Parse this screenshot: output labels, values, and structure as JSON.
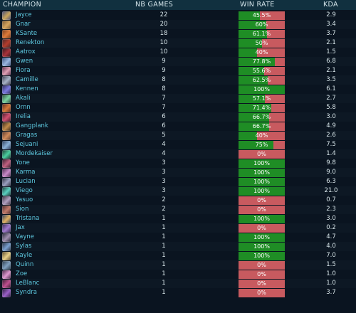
{
  "header": {
    "champion": "CHAMPION",
    "games": "NB GAMES",
    "winrate": "WIN RATE",
    "kda": "KDA"
  },
  "colors": {
    "win": "#1f8d25",
    "loss": "#c85a5f",
    "header_bg": "#11303f",
    "name": "#5ec9e0"
  },
  "rows": [
    {
      "name": "Jayce",
      "games": "22",
      "winrate": "45.5%",
      "win_pct": 45.5,
      "kda": "2.9",
      "icon": "jayce-icon",
      "c1": "#4a4f7a",
      "c2": "#c9a55a"
    },
    {
      "name": "Gnar",
      "games": "20",
      "winrate": "60%",
      "win_pct": 60,
      "kda": "3.4",
      "icon": "gnar-icon",
      "c1": "#7a5a34",
      "c2": "#d5a45e"
    },
    {
      "name": "KSante",
      "games": "18",
      "winrate": "61.1%",
      "win_pct": 61.1,
      "kda": "3.7",
      "icon": "ksante-icon",
      "c1": "#7a3d1c",
      "c2": "#e07b3a"
    },
    {
      "name": "Renekton",
      "games": "10",
      "winrate": "50%",
      "win_pct": 50,
      "kda": "2.1",
      "icon": "renekton-icon",
      "c1": "#4b2a2c",
      "c2": "#b33c2c"
    },
    {
      "name": "Aatrox",
      "games": "10",
      "winrate": "40%",
      "win_pct": 40,
      "kda": "1.5",
      "icon": "aatrox-icon",
      "c1": "#3a1a1f",
      "c2": "#a8333a"
    },
    {
      "name": "Gwen",
      "games": "9",
      "winrate": "77.8%",
      "win_pct": 77.8,
      "kda": "6.8",
      "icon": "gwen-icon",
      "c1": "#364d7a",
      "c2": "#9ab6e0"
    },
    {
      "name": "Fiora",
      "games": "9",
      "winrate": "55.6%",
      "win_pct": 55.6,
      "kda": "2.1",
      "icon": "fiora-icon",
      "c1": "#5a2a48",
      "c2": "#e0a0b4"
    },
    {
      "name": "Camille",
      "games": "8",
      "winrate": "62.5%",
      "win_pct": 62.5,
      "kda": "3.5",
      "icon": "camille-icon",
      "c1": "#3c3c4e",
      "c2": "#a7b3c7"
    },
    {
      "name": "Kennen",
      "games": "8",
      "winrate": "100%",
      "win_pct": 100,
      "kda": "6.1",
      "icon": "kennen-icon",
      "c1": "#2d2a5a",
      "c2": "#7b7ae0"
    },
    {
      "name": "Akali",
      "games": "7",
      "winrate": "57.1%",
      "win_pct": 57.1,
      "kda": "2.7",
      "icon": "akali-icon",
      "c1": "#2c4a3c",
      "c2": "#7ad2a0"
    },
    {
      "name": "Ornn",
      "games": "7",
      "winrate": "71.4%",
      "win_pct": 71.4,
      "kda": "5.8",
      "icon": "ornn-icon",
      "c1": "#5a2a20",
      "c2": "#d67a3a"
    },
    {
      "name": "Irelia",
      "games": "6",
      "winrate": "66.7%",
      "win_pct": 66.7,
      "kda": "3.0",
      "icon": "irelia-icon",
      "c1": "#4a1c2c",
      "c2": "#d05070"
    },
    {
      "name": "Gangplank",
      "games": "6",
      "winrate": "66.7%",
      "win_pct": 66.7,
      "kda": "4.9",
      "icon": "gangplank-icon",
      "c1": "#3a2a1c",
      "c2": "#c08a4a"
    },
    {
      "name": "Gragas",
      "games": "5",
      "winrate": "40%",
      "win_pct": 40,
      "kda": "2.6",
      "icon": "gragas-icon",
      "c1": "#5a3a2c",
      "c2": "#d08a5a"
    },
    {
      "name": "Sejuani",
      "games": "4",
      "winrate": "75%",
      "win_pct": 75,
      "kda": "7.5",
      "icon": "sejuani-icon",
      "c1": "#2a3c5a",
      "c2": "#8ab0d8"
    },
    {
      "name": "Mordekaiser",
      "games": "4",
      "winrate": "0%",
      "win_pct": 0,
      "kda": "1.4",
      "icon": "mordekaiser-icon",
      "c1": "#1c3a30",
      "c2": "#4ad0a0"
    },
    {
      "name": "Yone",
      "games": "3",
      "winrate": "100%",
      "win_pct": 100,
      "kda": "9.8",
      "icon": "yone-icon",
      "c1": "#3a2030",
      "c2": "#c06080"
    },
    {
      "name": "Karma",
      "games": "3",
      "winrate": "100%",
      "win_pct": 100,
      "kda": "9.0",
      "icon": "karma-icon",
      "c1": "#4a2a4a",
      "c2": "#c88ac8"
    },
    {
      "name": "Lucian",
      "games": "3",
      "winrate": "100%",
      "win_pct": 100,
      "kda": "6.3",
      "icon": "lucian-icon",
      "c1": "#2a2a3a",
      "c2": "#9aa0c0"
    },
    {
      "name": "Viego",
      "games": "3",
      "winrate": "100%",
      "win_pct": 100,
      "kda": "21.0",
      "icon": "viego-icon",
      "c1": "#1a3a3a",
      "c2": "#5ad0c0"
    },
    {
      "name": "Yasuo",
      "games": "2",
      "winrate": "0%",
      "win_pct": 0,
      "kda": "0.7",
      "icon": "yasuo-icon",
      "c1": "#3a3040",
      "c2": "#b0a0c0"
    },
    {
      "name": "Sion",
      "games": "2",
      "winrate": "0%",
      "win_pct": 0,
      "kda": "2.3",
      "icon": "sion-icon",
      "c1": "#4a2a2a",
      "c2": "#c07a6a"
    },
    {
      "name": "Tristana",
      "games": "1",
      "winrate": "100%",
      "win_pct": 100,
      "kda": "3.0",
      "icon": "tristana-icon",
      "c1": "#2a3a5a",
      "c2": "#e0b060"
    },
    {
      "name": "Jax",
      "games": "1",
      "winrate": "0%",
      "win_pct": 0,
      "kda": "0.2",
      "icon": "jax-icon",
      "c1": "#3a2a50",
      "c2": "#a07ad0"
    },
    {
      "name": "Vayne",
      "games": "1",
      "winrate": "100%",
      "win_pct": 100,
      "kda": "4.7",
      "icon": "vayne-icon",
      "c1": "#2a2a3a",
      "c2": "#a090b0"
    },
    {
      "name": "Sylas",
      "games": "1",
      "winrate": "100%",
      "win_pct": 100,
      "kda": "4.0",
      "icon": "sylas-icon",
      "c1": "#2a3040",
      "c2": "#7aa0d0"
    },
    {
      "name": "Kayle",
      "games": "1",
      "winrate": "100%",
      "win_pct": 100,
      "kda": "7.0",
      "icon": "kayle-icon",
      "c1": "#5a4a2a",
      "c2": "#e8d08a"
    },
    {
      "name": "Quinn",
      "games": "1",
      "winrate": "0%",
      "win_pct": 0,
      "kda": "1.5",
      "icon": "quinn-icon",
      "c1": "#2a3a4a",
      "c2": "#80a0c0"
    },
    {
      "name": "Zoe",
      "games": "1",
      "winrate": "0%",
      "win_pct": 0,
      "kda": "1.0",
      "icon": "zoe-icon",
      "c1": "#4a2a4a",
      "c2": "#e09ad0"
    },
    {
      "name": "LeBlanc",
      "games": "1",
      "winrate": "0%",
      "win_pct": 0,
      "kda": "1.0",
      "icon": "leblanc-icon",
      "c1": "#3a1c30",
      "c2": "#c05090"
    },
    {
      "name": "Syndra",
      "games": "1",
      "winrate": "0%",
      "win_pct": 0,
      "kda": "3.7",
      "icon": "syndra-icon",
      "c1": "#2a1c3a",
      "c2": "#9a60c8"
    }
  ]
}
